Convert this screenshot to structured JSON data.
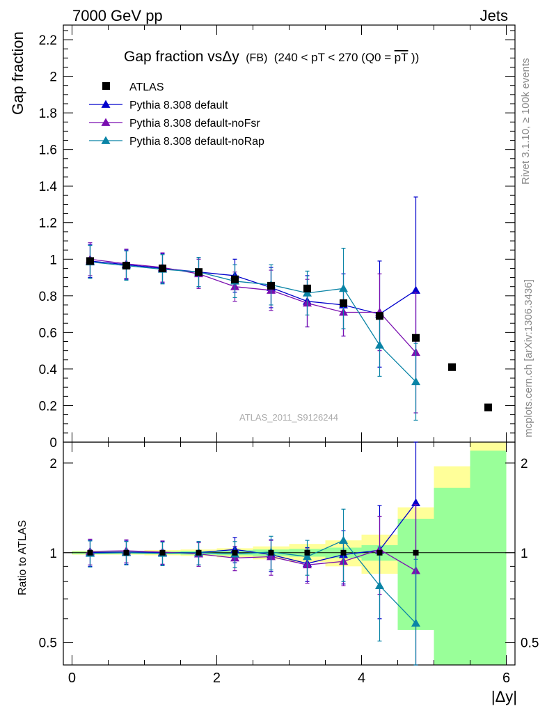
{
  "header": {
    "left": "7000 GeV pp",
    "right": "Jets"
  },
  "side_labels": {
    "rivet": "Rivet 3.1.10, ≥ 100k events",
    "mcplots": "mcplots.cern.ch [arXiv:1306.3436]"
  },
  "watermark": "ATLAS_2011_S9126244",
  "colors": {
    "ATLAS": "#000000",
    "Pythia 8.308 default": "#0000cc",
    "Pythia 8.308 default-noFsr": "#7a0fb0",
    "Pythia 8.308 default-noRap": "#0a84a6",
    "band_green": "#99ff99",
    "band_yellow": "#ffff99"
  },
  "chart_data": {
    "type": "scatter",
    "title": {
      "main": "Gap fraction vsΔy",
      "small": "(FB)",
      "cuts": "(240 < pT < 270 (Q0 =",
      "overline": "pT",
      "close": "))"
    },
    "xlabel": "|Δy|",
    "ylabel": "Gap fraction",
    "ratio_ylabel": "Ratio to ATLAS",
    "xlim": [
      -0.12,
      6.12
    ],
    "ylim": [
      0,
      2.28
    ],
    "ratio_ylim": [
      0.42,
      2.35
    ],
    "x_ticks": [
      0,
      2,
      4,
      6
    ],
    "y_ticks": [
      0,
      0.2,
      0.4,
      0.6,
      0.8,
      1,
      1.2,
      1.4,
      1.6,
      1.8,
      2,
      2.2
    ],
    "ratio_ticks": [
      0.5,
      1,
      2
    ],
    "x": [
      0.25,
      0.75,
      1.25,
      1.75,
      2.25,
      2.75,
      3.25,
      3.75,
      4.25,
      4.75,
      5.25,
      5.75
    ],
    "data": {
      "name": "ATLAS",
      "values": [
        0.99,
        0.965,
        0.95,
        0.93,
        0.89,
        0.855,
        0.84,
        0.76,
        0.69,
        0.57,
        0.41,
        0.19
      ]
    },
    "series": [
      {
        "name": "Pythia 8.308 default",
        "values": [
          0.99,
          0.97,
          0.95,
          0.93,
          0.91,
          0.845,
          0.77,
          0.75,
          0.7,
          0.83
        ],
        "errors": [
          0.09,
          0.08,
          0.08,
          0.08,
          0.09,
          0.11,
          0.14,
          0.17,
          0.29,
          0.51
        ],
        "ratio": [
          1.0,
          1.005,
          1.0,
          1.0,
          1.025,
          0.985,
          0.92,
          0.985,
          1.02,
          1.47
        ],
        "ratio_errors": [
          0.1,
          0.09,
          0.09,
          0.09,
          0.1,
          0.12,
          0.12,
          0.2,
          0.42,
          0.9
        ]
      },
      {
        "name": "Pythia 8.308 default-noFsr",
        "values": [
          1.0,
          0.975,
          0.955,
          0.92,
          0.85,
          0.83,
          0.76,
          0.71,
          0.71,
          0.49
        ],
        "errors": [
          0.09,
          0.08,
          0.08,
          0.08,
          0.08,
          0.11,
          0.13,
          0.13,
          0.21,
          0.33
        ],
        "ratio": [
          1.01,
          1.015,
          1.005,
          0.99,
          0.96,
          0.97,
          0.91,
          0.935,
          1.025,
          0.87
        ],
        "ratio_errors": [
          0.1,
          0.09,
          0.09,
          0.09,
          0.09,
          0.13,
          0.12,
          0.16,
          0.3,
          0.58
        ]
      },
      {
        "name": "Pythia 8.308 default-noRap",
        "values": [
          0.985,
          0.965,
          0.945,
          0.93,
          0.88,
          0.86,
          0.815,
          0.84,
          0.53,
          0.33
        ],
        "errors": [
          0.09,
          0.08,
          0.08,
          0.08,
          0.09,
          0.11,
          0.12,
          0.22,
          0.17,
          0.21
        ],
        "ratio": [
          0.995,
          1.0,
          0.995,
          1.0,
          0.99,
          1.005,
          0.97,
          1.1,
          0.775,
          0.58
        ],
        "ratio_errors": [
          0.1,
          0.09,
          0.09,
          0.09,
          0.1,
          0.13,
          0.13,
          0.3,
          0.27,
          0.37
        ]
      }
    ],
    "ratio_band": {
      "green_lo": [
        0.99,
        0.99,
        0.99,
        0.985,
        0.98,
        0.975,
        0.97,
        0.96,
        0.94,
        0.55,
        0.3,
        0.3
      ],
      "green_hi": [
        1.01,
        1.01,
        1.01,
        1.015,
        1.02,
        1.025,
        1.03,
        1.04,
        1.06,
        1.3,
        1.65,
        2.2
      ],
      "yellow_lo": [
        0.985,
        0.985,
        0.98,
        0.975,
        0.965,
        0.95,
        0.93,
        0.9,
        0.85,
        0.66,
        0.54,
        0.3
      ],
      "yellow_hi": [
        1.015,
        1.015,
        1.02,
        1.025,
        1.035,
        1.05,
        1.07,
        1.1,
        1.15,
        1.42,
        1.95,
        2.35
      ]
    }
  }
}
